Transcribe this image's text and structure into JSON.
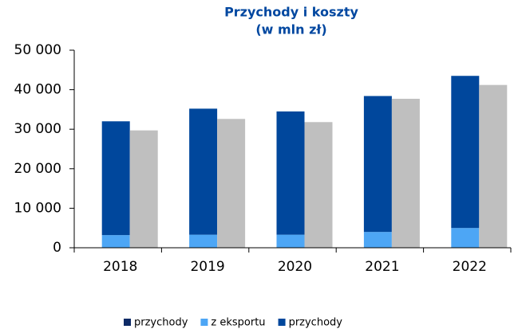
{
  "chart_data": {
    "type": "bar",
    "stacked": true,
    "title": "Przychody i koszty",
    "subtitle": "(w mln zł)",
    "categories": [
      "2018",
      "2019",
      "2020",
      "2021",
      "2022"
    ],
    "series": [
      {
        "color": "#4da6f5",
        "values": [
          3200,
          3300,
          3300,
          4000,
          5000
        ],
        "stack": "a"
      },
      {
        "color": "#00479c",
        "values": [
          28800,
          31900,
          31200,
          34400,
          38500
        ],
        "stack": "a"
      },
      {
        "color": "#bfbfbf",
        "values": [
          29700,
          32600,
          31800,
          37700,
          41200
        ],
        "stack": "b"
      }
    ],
    "legend": [
      {
        "label": "przychody",
        "color": "#0d2a66"
      },
      {
        "label": "z eksportu",
        "color": "#4da6f5"
      },
      {
        "label": "przychody",
        "color": "#00479c"
      }
    ],
    "ylim": [
      0,
      50000
    ],
    "yticks": [
      0,
      {
        "value": 10000,
        "label": "10 000"
      },
      {
        "value": 20000,
        "label": "20 000"
      },
      {
        "value": 30000,
        "label": "30 000"
      },
      {
        "value": 40000,
        "label": "40 000"
      },
      {
        "value": 50000,
        "label": "50 000"
      }
    ],
    "grid": false
  }
}
